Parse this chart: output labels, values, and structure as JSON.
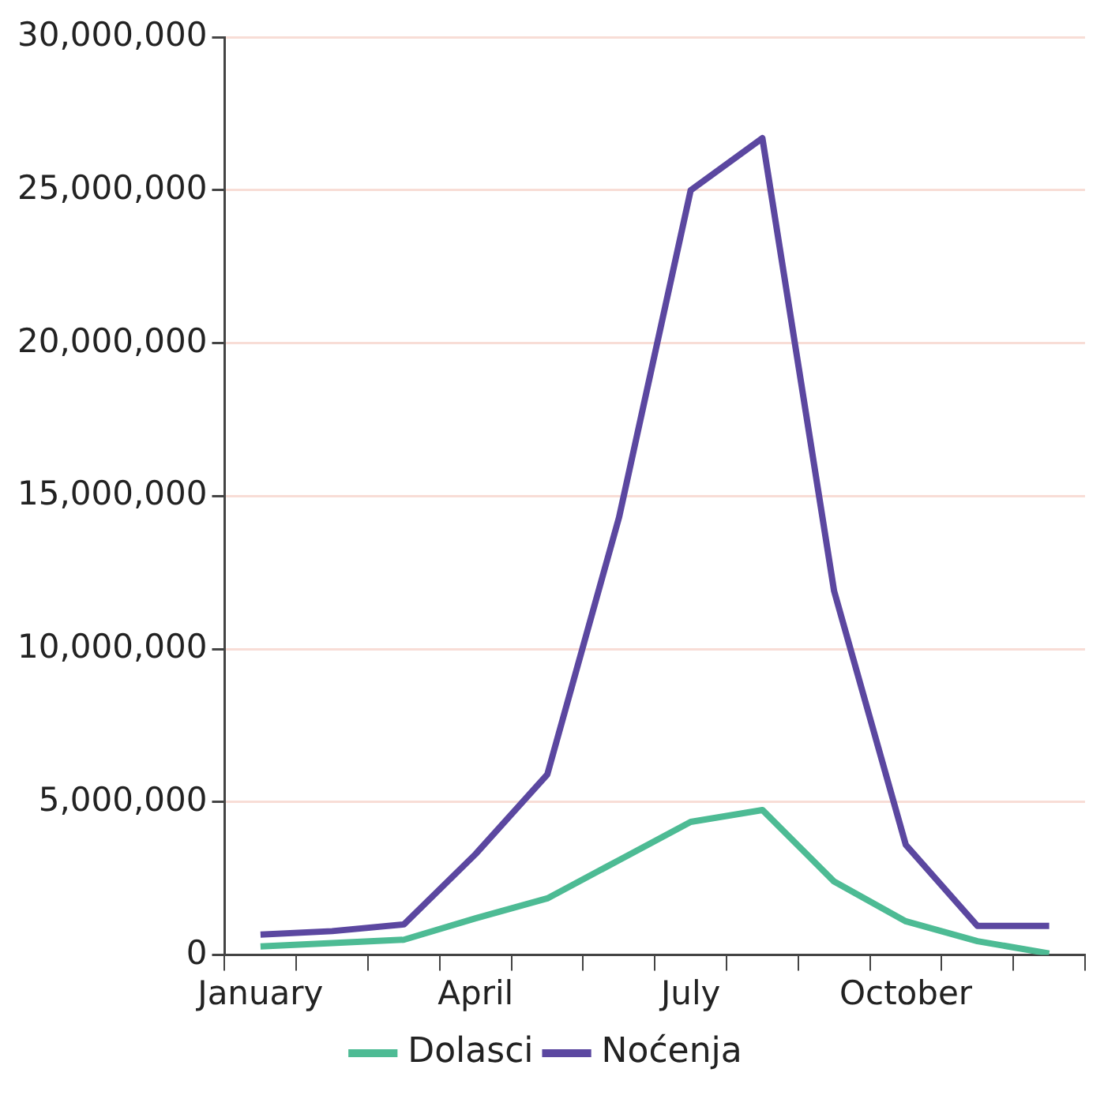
{
  "chart_data": {
    "type": "line",
    "categories": [
      "January",
      null,
      null,
      "April",
      null,
      null,
      "July",
      null,
      null,
      "October",
      null,
      null
    ],
    "series": [
      {
        "name": "Dolasci",
        "color": "#4dbb94",
        "values": [
          280000,
          390000,
          500000,
          1200000,
          1850000,
          3100000,
          4350000,
          4740000,
          2400000,
          1100000,
          450000,
          50000
        ]
      },
      {
        "name": "Noćenja",
        "color": "#5b47a0",
        "values": [
          670000,
          780000,
          1000000,
          3300000,
          5900000,
          14300000,
          25000000,
          26700000,
          11900000,
          3600000,
          950000,
          950000
        ]
      }
    ],
    "ylim": [
      0,
      30000000
    ],
    "yticks": [
      0,
      {
        "value": 5000000,
        "label": "5,000,000"
      },
      {
        "value": 10000000,
        "label": "10,000,000"
      },
      {
        "value": 15000000,
        "label": "15,000,000"
      },
      {
        "value": 20000000,
        "label": "20,000,000"
      },
      {
        "value": 25000000,
        "label": "25,000,000"
      },
      {
        "value": 30000000,
        "label": "30,000,000"
      }
    ],
    "grid": "y",
    "legend": "bottom",
    "marker": "none",
    "line_style": "solid"
  }
}
